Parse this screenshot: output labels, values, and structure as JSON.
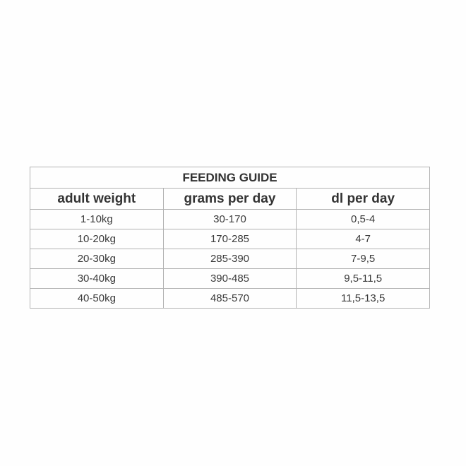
{
  "table": {
    "title": "FEEDING GUIDE",
    "columns": [
      "adult weight",
      "grams per day",
      "dl per day"
    ],
    "rows": [
      [
        "1-10kg",
        "30-170",
        "0,5-4"
      ],
      [
        "10-20kg",
        "170-285",
        "4-7"
      ],
      [
        "20-30kg",
        "285-390",
        "7-9,5"
      ],
      [
        "30-40kg",
        "390-485",
        "9,5-11,5"
      ],
      [
        "40-50kg",
        "485-570",
        "11,5-13,5"
      ]
    ],
    "colors": {
      "background": "#fefefe",
      "border_inner": "#b2b2b2",
      "border_outer": "#9e9e9e",
      "text": "#3a3a3a"
    }
  }
}
